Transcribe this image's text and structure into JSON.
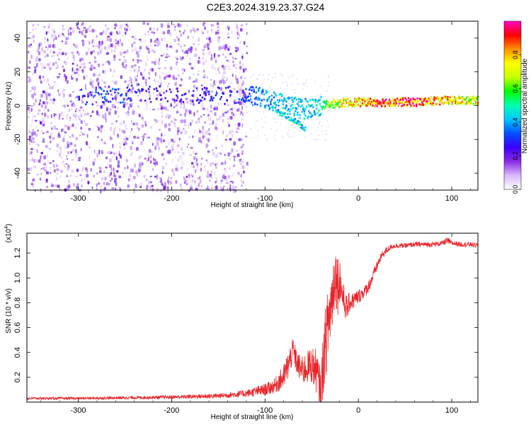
{
  "title": "C2E3.2024.319.23.37.G24",
  "chart_data": [
    {
      "type": "heatmap",
      "xlabel": "Height of straight line (km)",
      "ylabel": "Frequency (Hz)",
      "xlim": [
        -355,
        128
      ],
      "ylim": [
        -50,
        50
      ],
      "x_ticks": [
        -300,
        -200,
        -100,
        0,
        100
      ],
      "x_tick_labels": [
        "-300",
        "-200",
        "-100",
        "0",
        "100"
      ],
      "y_ticks": [
        -40,
        -20,
        0,
        20,
        40
      ],
      "y_tick_labels": [
        "-40",
        "-20",
        "0",
        "20",
        "40"
      ],
      "colorbar": {
        "label": "Normalized spectral amplitude",
        "range": [
          0,
          1
        ],
        "ticks": [
          0.0,
          0.2,
          0.4,
          0.6,
          0.8
        ],
        "tick_labels": [
          "0.0",
          "0.2",
          "0.4",
          "0.6",
          "0.8"
        ],
        "colors": [
          "#ffffff",
          "#d8b8ff",
          "#8a2be2",
          "#3b00ff",
          "#0050ff",
          "#00c8ff",
          "#00ffb0",
          "#00ff00",
          "#c8ff00",
          "#ffff00",
          "#ff9000",
          "#ff0000",
          "#ff00c8"
        ]
      },
      "noise_region": {
        "x_range": [
          -355,
          -120
        ],
        "freq_range": [
          -50,
          50
        ],
        "amplitude": 0.15
      },
      "signal_track": [
        {
          "x": -300,
          "freq": 5,
          "amplitude": 0.3
        },
        {
          "x": -275,
          "freq": 6,
          "amplitude": 0.35
        },
        {
          "x": -255,
          "freq": 6,
          "amplitude": 0.35
        },
        {
          "x": -245,
          "freq": 8,
          "amplitude": 0.3
        },
        {
          "x": -200,
          "freq": 6,
          "amplitude": 0.25
        },
        {
          "x": -120,
          "freq": 6,
          "amplitude": 0.35
        },
        {
          "x": -100,
          "freq": 4,
          "amplitude": 0.4
        },
        {
          "x": -80,
          "freq": 1,
          "amplitude": 0.45
        },
        {
          "x": -60,
          "freq": -2,
          "amplitude": 0.45
        },
        {
          "x": -40,
          "freq": 0,
          "amplitude": 0.5
        },
        {
          "x": -30,
          "freq": 1,
          "amplitude": 0.7
        },
        {
          "x": -10,
          "freq": 2,
          "amplitude": 0.8
        },
        {
          "x": 20,
          "freq": 2,
          "amplitude": 0.9
        },
        {
          "x": 60,
          "freq": 2,
          "amplitude": 0.95
        },
        {
          "x": 90,
          "freq": 3,
          "amplitude": 0.85
        },
        {
          "x": 128,
          "freq": 3,
          "amplitude": 0.75
        }
      ],
      "secondary_track": [
        {
          "x": -90,
          "freq": -2
        },
        {
          "x": -70,
          "freq": -8
        },
        {
          "x": -58,
          "freq": -13
        }
      ]
    },
    {
      "type": "line",
      "xlabel": "Height of straight line (km)",
      "ylabel": "SNR (10 * v/v)",
      "multiplier": "(x10",
      "multiplier_exp": "4",
      "multiplier_close": ")",
      "xlim": [
        -355,
        128
      ],
      "ylim": [
        0,
        1.36
      ],
      "x_ticks": [
        -300,
        -200,
        -100,
        0,
        100
      ],
      "x_tick_labels": [
        "-300",
        "-200",
        "-100",
        "0",
        "100"
      ],
      "y_ticks": [
        0.2,
        0.4,
        0.6,
        0.8,
        1.0,
        1.2
      ],
      "y_tick_labels": [
        "0.2",
        "0.4",
        "0.6",
        "0.8",
        "1.0",
        "1.2"
      ],
      "line_color": "#e8262b",
      "series": [
        {
          "x": [
            -355,
            -300,
            -250,
            -200,
            -150,
            -120,
            -100,
            -90,
            -80,
            -75,
            -70,
            -65,
            -60,
            -55,
            -50,
            -45,
            -40,
            -38,
            -35,
            -30,
            -27,
            -25,
            -22,
            -20,
            -18,
            -15,
            -12,
            -10,
            -5,
            0,
            5,
            10,
            15,
            20,
            25,
            30,
            35,
            40,
            50,
            60,
            70,
            80,
            90,
            95,
            100,
            110,
            120,
            128
          ],
          "values": [
            0.03,
            0.03,
            0.035,
            0.04,
            0.05,
            0.07,
            0.1,
            0.13,
            0.2,
            0.3,
            0.42,
            0.3,
            0.25,
            0.28,
            0.3,
            0.25,
            0.05,
            0.3,
            0.5,
            0.75,
            0.9,
            1.05,
            0.95,
            1.0,
            0.9,
            0.8,
            0.75,
            0.8,
            0.82,
            0.85,
            0.88,
            0.92,
            1.0,
            1.1,
            1.18,
            1.22,
            1.25,
            1.26,
            1.26,
            1.27,
            1.27,
            1.27,
            1.28,
            1.3,
            1.28,
            1.27,
            1.27,
            1.26
          ],
          "noise": [
            0.01,
            0.01,
            0.012,
            0.015,
            0.02,
            0.03,
            0.05,
            0.06,
            0.1,
            0.12,
            0.1,
            0.1,
            0.12,
            0.13,
            0.15,
            0.18,
            0.2,
            0.25,
            0.3,
            0.3,
            0.3,
            0.25,
            0.25,
            0.2,
            0.15,
            0.12,
            0.1,
            0.08,
            0.07,
            0.06,
            0.05,
            0.05,
            0.05,
            0.04,
            0.03,
            0.03,
            0.02,
            0.02,
            0.02,
            0.02,
            0.02,
            0.02,
            0.02,
            0.03,
            0.02,
            0.02,
            0.02,
            0.02
          ]
        }
      ]
    }
  ]
}
